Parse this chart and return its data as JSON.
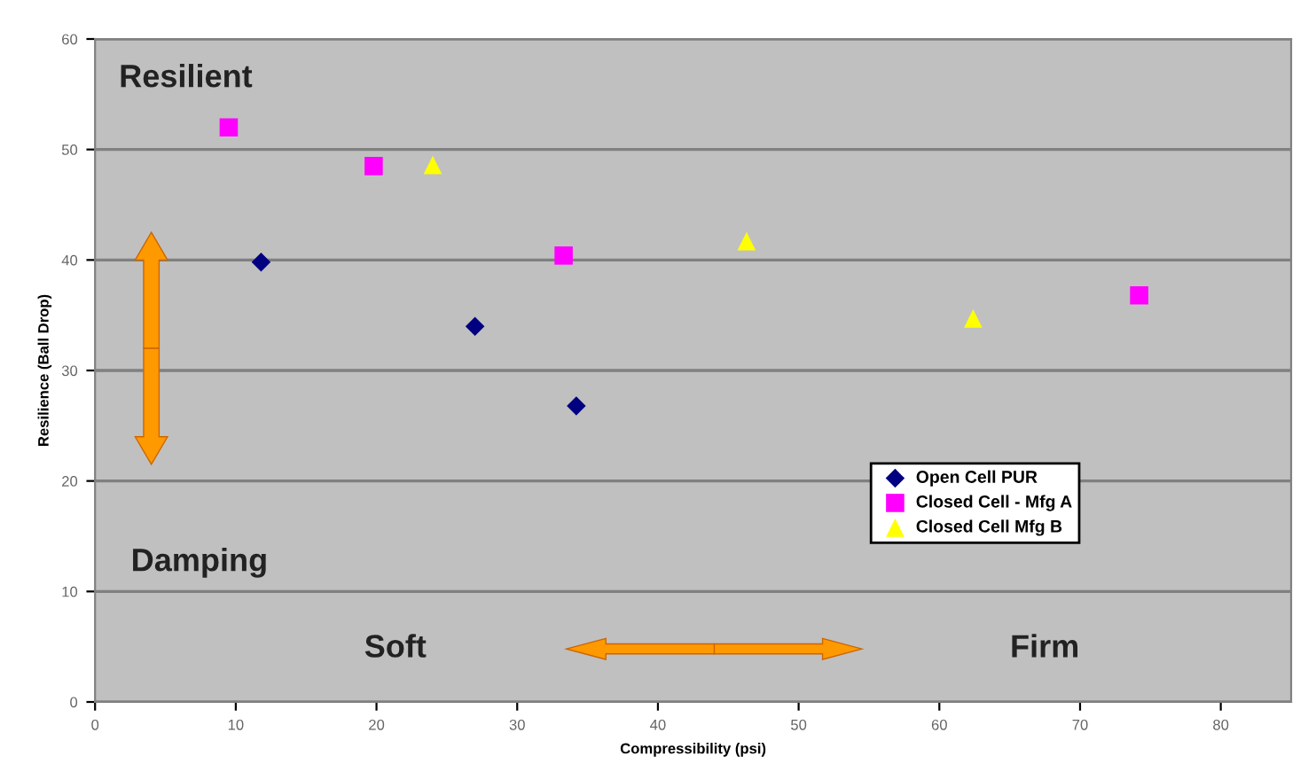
{
  "chart_data": {
    "type": "scatter",
    "xlabel": "Compressibility (psi)",
    "ylabel": "Resilience (Ball Drop)",
    "xlim": [
      0,
      85
    ],
    "xticks": [
      0,
      10,
      20,
      30,
      40,
      50,
      60,
      70,
      80
    ],
    "ylim": [
      0,
      60
    ],
    "yticks": [
      0,
      10,
      20,
      30,
      40,
      50,
      60
    ],
    "grid": "y",
    "legend": "right",
    "annotations": [
      "Resilient",
      "Damping",
      "Soft",
      "Firm"
    ],
    "series": [
      {
        "name": "Open Cell PUR",
        "color": "#000080",
        "marker": "diamond",
        "x": [
          11.8,
          27.0,
          34.2
        ],
        "values": [
          39.8,
          34.0,
          26.8
        ]
      },
      {
        "name": "Closed Cell - Mfg A",
        "color": "#ff00ff",
        "marker": "square",
        "x": [
          9.5,
          19.8,
          33.3,
          74.2
        ],
        "values": [
          52.0,
          48.5,
          40.4,
          36.8
        ]
      },
      {
        "name": "Closed Cell Mfg B",
        "color": "#ffff00",
        "marker": "triangle",
        "x": [
          24.0,
          46.3,
          62.4
        ],
        "values": [
          48.6,
          41.7,
          34.7
        ]
      }
    ]
  }
}
